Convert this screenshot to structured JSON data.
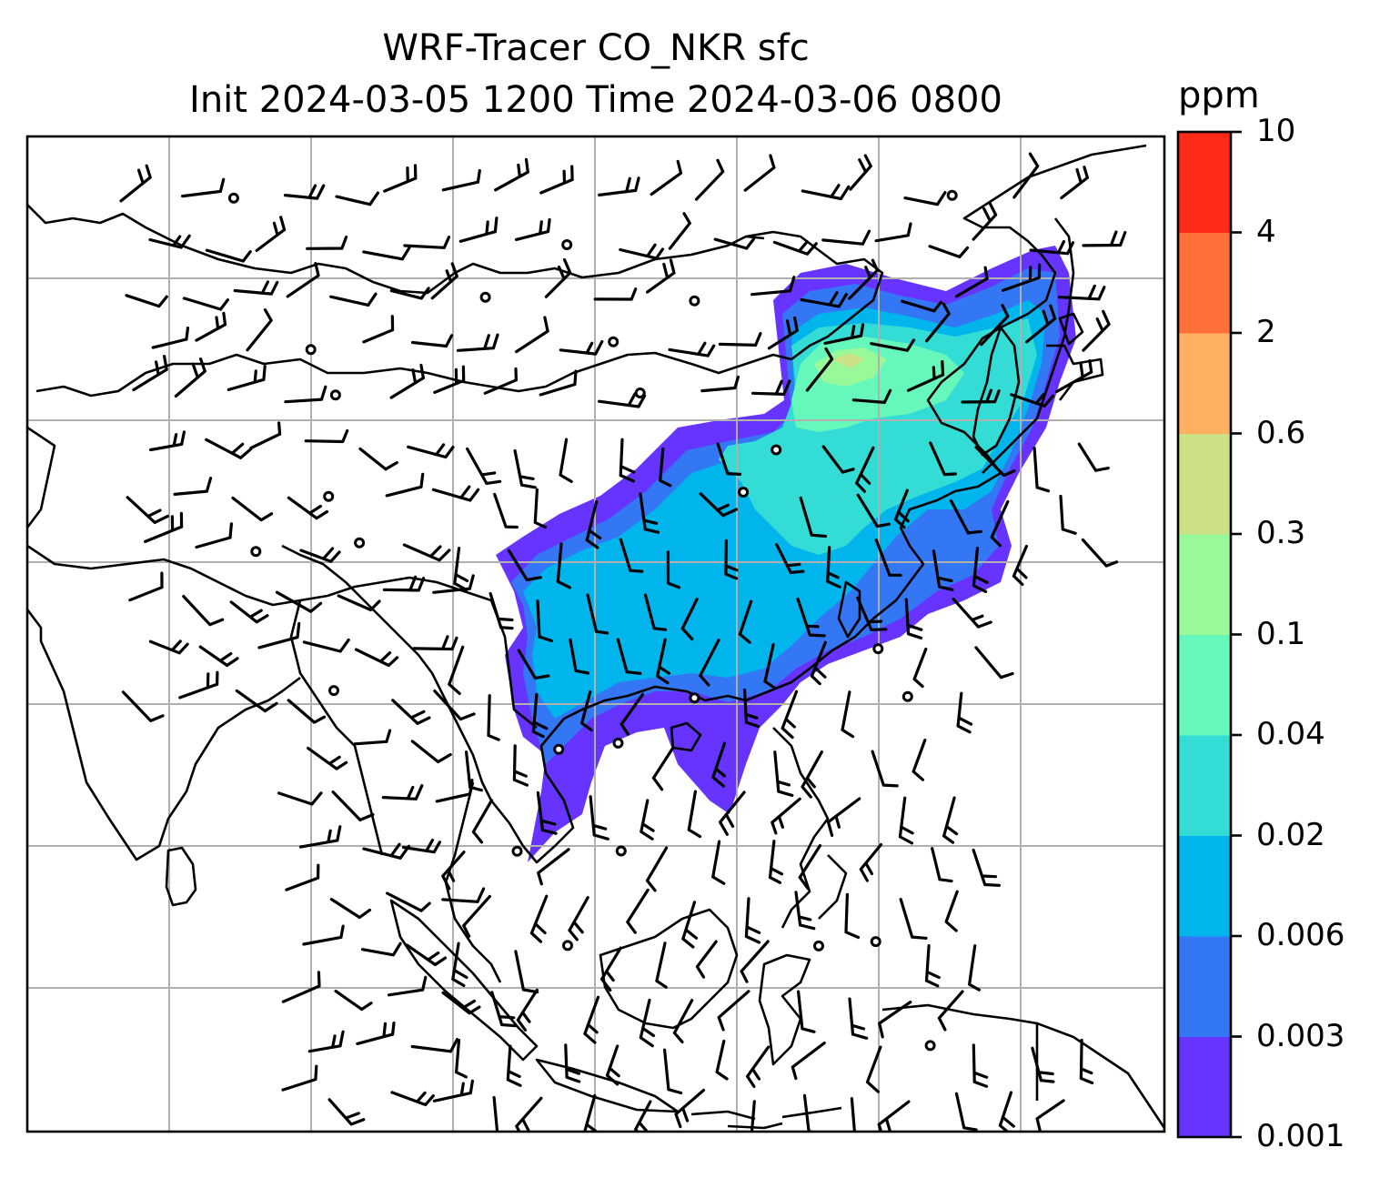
{
  "title": {
    "line1": "WRF-Tracer CO_NKR sfc",
    "line2": "Init 2024-03-05 1200 Time 2024-03-06 0800"
  },
  "colorbar": {
    "unit": "ppm",
    "levels": [
      "0.001",
      "0.003",
      "0.006",
      "0.02",
      "0.04",
      "0.1",
      "0.3",
      "0.6",
      "2",
      "4",
      "10"
    ],
    "colors": [
      "#6633ff",
      "#3377f5",
      "#00b4ec",
      "#33dcd5",
      "#66f7bb",
      "#99f99a",
      "#cce086",
      "#ffb060",
      "#ff7038",
      "#ff2a18"
    ]
  },
  "map": {
    "field": "CO_NKR tracer concentration (surface)",
    "overlay": "wind barbs",
    "gridlines": true
  }
}
